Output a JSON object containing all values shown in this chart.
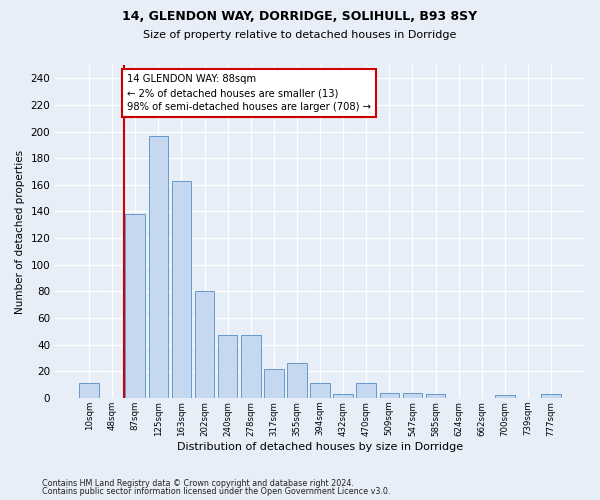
{
  "title1": "14, GLENDON WAY, DORRIDGE, SOLIHULL, B93 8SY",
  "title2": "Size of property relative to detached houses in Dorridge",
  "xlabel": "Distribution of detached houses by size in Dorridge",
  "ylabel": "Number of detached properties",
  "categories": [
    "10sqm",
    "48sqm",
    "87sqm",
    "125sqm",
    "163sqm",
    "202sqm",
    "240sqm",
    "278sqm",
    "317sqm",
    "355sqm",
    "394sqm",
    "432sqm",
    "470sqm",
    "509sqm",
    "547sqm",
    "585sqm",
    "624sqm",
    "662sqm",
    "700sqm",
    "739sqm",
    "777sqm"
  ],
  "values": [
    11,
    0,
    138,
    197,
    163,
    80,
    47,
    47,
    22,
    26,
    11,
    3,
    11,
    4,
    4,
    3,
    0,
    0,
    2,
    0,
    3
  ],
  "bar_color": "#c5d8f0",
  "bar_edge_color": "#6699cc",
  "annotation_text_line1": "14 GLENDON WAY: 88sqm",
  "annotation_text_line2": "← 2% of detached houses are smaller (13)",
  "annotation_text_line3": "98% of semi-detached houses are larger (708) →",
  "annotation_box_color": "#cc0000",
  "vline_color": "#cc0000",
  "vline_x": 1.5,
  "ylim": [
    0,
    250
  ],
  "yticks": [
    0,
    20,
    40,
    60,
    80,
    100,
    120,
    140,
    160,
    180,
    200,
    220,
    240
  ],
  "footnote1": "Contains HM Land Registry data © Crown copyright and database right 2024.",
  "footnote2": "Contains public sector information licensed under the Open Government Licence v3.0.",
  "bg_color": "#e8eef8",
  "plot_bg_color": "#e8eef8"
}
